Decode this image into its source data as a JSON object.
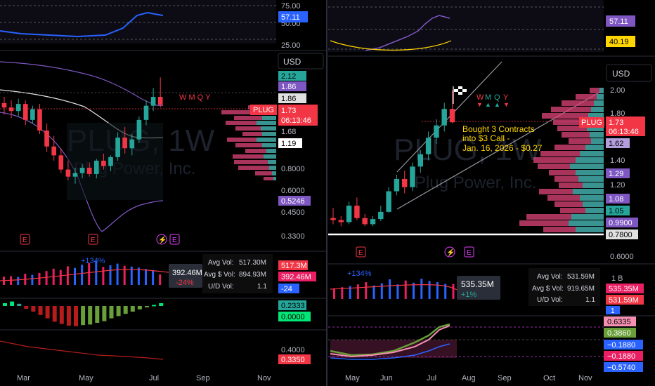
{
  "symbol": "PLUG",
  "timeframe": "1W",
  "company": "Plug Power, Inc.",
  "currency": "USD",
  "colors": {
    "up": "#26a69a",
    "down": "#f23645",
    "rsi": "#2962ff",
    "band": "#7e57c2",
    "volume_profile_up": "#26a69a",
    "volume_profile_down": "#e0457b",
    "accent_label": "#f23645",
    "annotation": "#ffd600"
  },
  "left_panel": {
    "rsi_axis": [
      "75.00",
      "50.00",
      "25.00"
    ],
    "rsi_tag": "57.11",
    "price_tags": {
      "band_upper": "2.12",
      "band_mid": "1.86",
      "level": "1.86",
      "current": "1.73",
      "countdown": "06:13:46",
      "ma": "1.19",
      "low_band": "0.5246"
    },
    "price_axis": [
      "1.68",
      "0.8000",
      "0.6000",
      "0.4500",
      "0.3300"
    ],
    "earnings_markers": [
      "E",
      "E",
      "E"
    ],
    "dividend_marker": "⚡",
    "wmqy": "W M Q Y",
    "volume": {
      "change_top": "+134%",
      "current_label": "392.46M",
      "current_pct": "-24%",
      "stats_labels": [
        "Avg Vol:",
        "Avg $ Vol:",
        "U/D Vol:"
      ],
      "stats_values": [
        "517.30M",
        "894.93M",
        "1.1"
      ],
      "tags": [
        "517.3M",
        "392.46M",
        "-24"
      ]
    },
    "oscillator_tags": [
      "0.2333",
      "0.0000"
    ],
    "bottom_axis": [
      "0.4000"
    ],
    "bottom_tag": "0.3350",
    "time_axis": [
      "Mar",
      "May",
      "Jul",
      "Sep",
      "Nov"
    ]
  },
  "right_panel": {
    "rsi_tags": [
      "57.11",
      "40.19"
    ],
    "price_tags": {
      "current": "1.73",
      "countdown": "06:13:46",
      "t1": "1.62",
      "t2": "1.29",
      "t3": "1.08",
      "t4": "1.05",
      "t5": "0.9900",
      "t6": "0.7800"
    },
    "price_axis": [
      "2.00",
      "1.80",
      "1.40",
      "1.20",
      "0.6000"
    ],
    "annotation_lines": [
      "Bought  3 Contracts",
      "into $3 Call -",
      "Jan. 16, 2026 - $0.27"
    ],
    "earnings_marker": "E",
    "dividend_marker": "⚡",
    "wmqy": [
      "W",
      "M",
      "Q",
      "Y"
    ],
    "volume": {
      "change_top": "+134%",
      "current_label": "535.35M",
      "current_pct": "+1%",
      "stats_labels": [
        "Avg Vol:",
        "Avg $ Vol:",
        "U/D Vol:"
      ],
      "stats_values": [
        "531.59M",
        "919.65M",
        "1.1"
      ],
      "axis": "1 B",
      "tags": [
        "535.35M",
        "531.59M",
        "1"
      ]
    },
    "oscillator_tags": [
      "0.6335",
      "0.3860",
      "−0.1880",
      "−0.1880",
      "−0.5740"
    ],
    "time_axis": [
      "May",
      "Jun",
      "Jul",
      "Aug",
      "Sep",
      "Oct",
      "Nov"
    ]
  },
  "chart_data": [
    {
      "type": "candlestick",
      "title": "PLUG, 1W",
      "panel": "left",
      "candles": [
        {
          "o": 1.75,
          "h": 1.82,
          "l": 1.62,
          "c": 1.7
        },
        {
          "o": 1.7,
          "h": 1.78,
          "l": 1.58,
          "c": 1.66
        },
        {
          "o": 1.66,
          "h": 1.8,
          "l": 1.6,
          "c": 1.74
        },
        {
          "o": 1.74,
          "h": 1.78,
          "l": 1.5,
          "c": 1.56
        },
        {
          "o": 1.56,
          "h": 1.72,
          "l": 1.52,
          "c": 1.68
        },
        {
          "o": 1.68,
          "h": 1.74,
          "l": 1.4,
          "c": 1.44
        },
        {
          "o": 1.44,
          "h": 1.52,
          "l": 1.2,
          "c": 1.26
        },
        {
          "o": 1.26,
          "h": 1.38,
          "l": 1.1,
          "c": 1.16
        },
        {
          "o": 1.16,
          "h": 1.24,
          "l": 0.96,
          "c": 1.0
        },
        {
          "o": 1.0,
          "h": 1.1,
          "l": 0.88,
          "c": 0.92
        },
        {
          "o": 0.92,
          "h": 1.02,
          "l": 0.84,
          "c": 0.96
        },
        {
          "o": 0.96,
          "h": 1.06,
          "l": 0.9,
          "c": 1.02
        },
        {
          "o": 1.02,
          "h": 1.08,
          "l": 0.92,
          "c": 0.95
        },
        {
          "o": 0.95,
          "h": 1.12,
          "l": 0.9,
          "c": 1.1
        },
        {
          "o": 1.1,
          "h": 1.18,
          "l": 1.0,
          "c": 1.04
        },
        {
          "o": 1.04,
          "h": 1.16,
          "l": 0.98,
          "c": 1.14
        },
        {
          "o": 1.14,
          "h": 1.42,
          "l": 1.1,
          "c": 1.36
        },
        {
          "o": 1.36,
          "h": 1.48,
          "l": 1.18,
          "c": 1.24
        },
        {
          "o": 1.24,
          "h": 1.4,
          "l": 1.16,
          "c": 1.34
        },
        {
          "o": 1.34,
          "h": 1.6,
          "l": 1.3,
          "c": 1.56
        },
        {
          "o": 1.56,
          "h": 1.78,
          "l": 1.5,
          "c": 1.72
        },
        {
          "o": 1.72,
          "h": 1.92,
          "l": 1.66,
          "c": 1.82
        },
        {
          "o": 1.82,
          "h": 2.04,
          "l": 1.7,
          "c": 1.73
        }
      ],
      "ylim": [
        0.3,
        2.2
      ]
    },
    {
      "type": "candlestick",
      "title": "PLUG, 1W",
      "panel": "right",
      "candles": [
        {
          "o": 0.8,
          "h": 0.9,
          "l": 0.74,
          "c": 0.78
        },
        {
          "o": 0.78,
          "h": 0.82,
          "l": 0.72,
          "c": 0.76
        },
        {
          "o": 0.76,
          "h": 0.96,
          "l": 0.74,
          "c": 0.92
        },
        {
          "o": 0.92,
          "h": 1.0,
          "l": 0.78,
          "c": 0.8
        },
        {
          "o": 0.8,
          "h": 0.84,
          "l": 0.72,
          "c": 0.74
        },
        {
          "o": 0.74,
          "h": 0.82,
          "l": 0.72,
          "c": 0.79
        },
        {
          "o": 0.79,
          "h": 0.92,
          "l": 0.77,
          "c": 0.86
        },
        {
          "o": 0.86,
          "h": 1.1,
          "l": 0.85,
          "c": 1.06
        },
        {
          "o": 1.06,
          "h": 1.22,
          "l": 1.02,
          "c": 1.18
        },
        {
          "o": 1.18,
          "h": 1.26,
          "l": 1.04,
          "c": 1.1
        },
        {
          "o": 1.1,
          "h": 1.34,
          "l": 1.06,
          "c": 1.3
        },
        {
          "o": 1.3,
          "h": 1.46,
          "l": 1.24,
          "c": 1.42
        },
        {
          "o": 1.42,
          "h": 1.64,
          "l": 1.36,
          "c": 1.58
        },
        {
          "o": 1.58,
          "h": 1.76,
          "l": 1.52,
          "c": 1.7
        },
        {
          "o": 1.7,
          "h": 1.92,
          "l": 1.64,
          "c": 1.86
        },
        {
          "o": 1.86,
          "h": 2.04,
          "l": 1.72,
          "c": 1.73
        }
      ],
      "ylim": [
        0.6,
        2.1
      ]
    },
    {
      "type": "bar",
      "title": "Volume (left)",
      "values": [
        310,
        330,
        300,
        420,
        380,
        450,
        520,
        610,
        560,
        700,
        640,
        760,
        820,
        900,
        680,
        740,
        800,
        720,
        690,
        650,
        600,
        560,
        392
      ],
      "colors": "candle"
    },
    {
      "type": "bar",
      "title": "Volume (right)",
      "values": [
        380,
        420,
        460,
        520,
        600,
        480,
        560,
        700,
        520,
        660,
        580,
        720,
        640,
        600,
        540,
        535
      ]
    },
    {
      "type": "bar",
      "title": "Oscillator (left)",
      "values": [
        0.05,
        0.08,
        0.04,
        -0.05,
        -0.1,
        -0.16,
        -0.22,
        -0.28,
        -0.32,
        -0.35,
        -0.36,
        -0.34,
        -0.33,
        -0.3,
        -0.27,
        -0.22,
        -0.18,
        -0.14,
        -0.1,
        -0.06,
        -0.02,
        0.02,
        0.05
      ]
    }
  ]
}
